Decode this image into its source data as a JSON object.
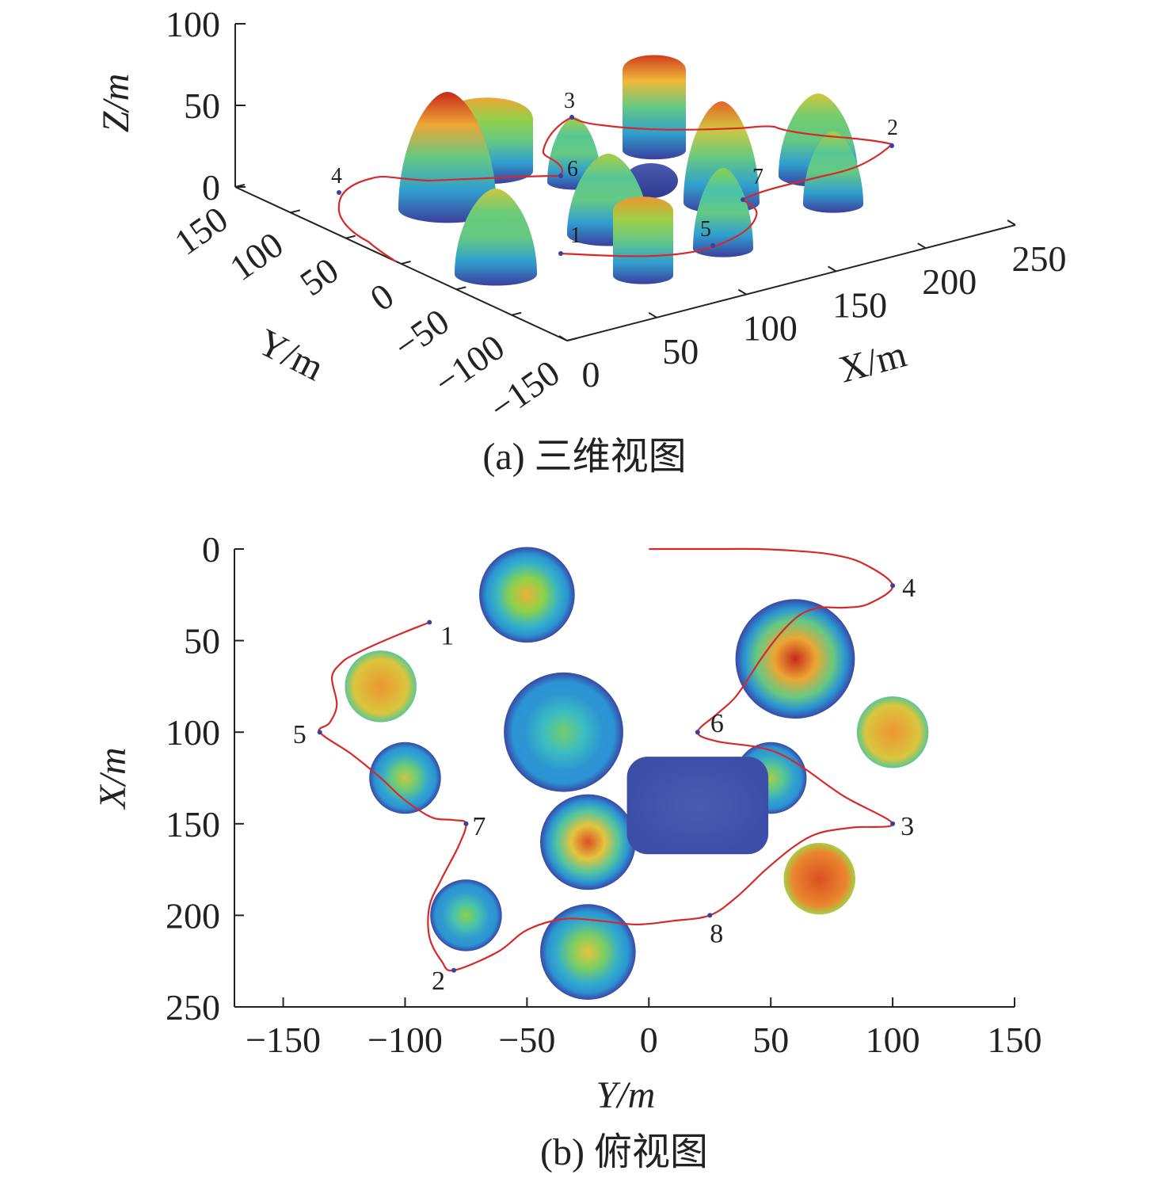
{
  "chart_data": [
    {
      "type": "surface3d",
      "caption": "(a) 三维视图",
      "xlabel": "X/m",
      "ylabel": "Y/m",
      "zlabel": "Z/m",
      "x_ticks": [
        0,
        50,
        100,
        150,
        200,
        250
      ],
      "y_ticks": [
        150,
        100,
        50,
        0,
        -50,
        -100,
        -150
      ],
      "z_ticks": [
        100,
        50,
        0
      ],
      "xlim": [
        0,
        250
      ],
      "ylim": [
        -150,
        150
      ],
      "zlim": [
        0,
        100
      ],
      "colormap": [
        "#3b3f9e",
        "#2a8fd6",
        "#3cc0c0",
        "#8ad24a",
        "#f0c23a",
        "#e86a28",
        "#c62a1a"
      ],
      "path_color": "#d62a2a",
      "waypoint_labels": [
        "1",
        "2",
        "3",
        "4",
        "5",
        "6",
        "7"
      ]
    },
    {
      "type": "heatmap",
      "caption": "(b) 俯视图",
      "xlabel": "Y/m",
      "ylabel": "X/m",
      "x_ticks": [
        -150,
        -100,
        -50,
        0,
        50,
        100,
        150
      ],
      "y_ticks": [
        0,
        50,
        100,
        150,
        200,
        250
      ],
      "xlim": [
        -170,
        150
      ],
      "ylim": [
        0,
        250
      ],
      "colormap": [
        "#3b3f9e",
        "#2a8fd6",
        "#3cc0c0",
        "#8ad24a",
        "#f0c23a",
        "#e86a28",
        "#c62a1a"
      ],
      "obstacles": [
        {
          "shape": "circle",
          "y": -50,
          "x": 25,
          "r": 20,
          "peak": 0.7
        },
        {
          "shape": "circle",
          "y": -110,
          "x": 75,
          "r": 15,
          "peak": 0.75,
          "flat": true
        },
        {
          "shape": "circle",
          "y": -35,
          "x": 100,
          "r": 25,
          "peak": 0.45
        },
        {
          "shape": "circle",
          "y": -100,
          "x": 125,
          "r": 15,
          "peak": 0.6
        },
        {
          "shape": "circle",
          "y": -25,
          "x": 160,
          "r": 20,
          "peak": 0.9
        },
        {
          "shape": "circle",
          "y": -75,
          "x": 200,
          "r": 15,
          "peak": 0.5
        },
        {
          "shape": "circle",
          "y": -25,
          "x": 220,
          "r": 20,
          "peak": 0.65
        },
        {
          "shape": "circle",
          "y": 60,
          "x": 60,
          "r": 25,
          "peak": 1.0
        },
        {
          "shape": "circle",
          "y": 100,
          "x": 100,
          "r": 15,
          "peak": 0.75,
          "flat": true
        },
        {
          "shape": "circle",
          "y": 50,
          "x": 125,
          "r": 15,
          "peak": 0.55
        },
        {
          "shape": "circle",
          "y": 70,
          "x": 180,
          "r": 15,
          "peak": 0.9,
          "flat": true
        },
        {
          "shape": "square",
          "y": 20,
          "x": 140,
          "half": 20,
          "peak": 0.0
        }
      ],
      "path": [
        [
          0,
          0
        ],
        [
          15,
          0
        ],
        [
          30,
          0
        ],
        [
          45,
          0
        ],
        [
          60,
          1
        ],
        [
          75,
          3
        ],
        [
          88,
          8
        ],
        [
          100,
          20
        ],
        [
          90,
          30
        ],
        [
          80,
          32
        ],
        [
          70,
          32
        ],
        [
          62,
          36
        ],
        [
          54,
          46
        ],
        [
          46,
          60
        ],
        [
          36,
          80
        ],
        [
          28,
          90
        ],
        [
          20,
          100
        ],
        [
          28,
          105
        ],
        [
          44,
          108
        ],
        [
          54,
          112
        ],
        [
          64,
          120
        ],
        [
          80,
          135
        ],
        [
          100,
          150
        ],
        [
          84,
          152
        ],
        [
          70,
          155
        ],
        [
          60,
          162
        ],
        [
          48,
          175
        ],
        [
          36,
          190
        ],
        [
          25,
          200
        ],
        [
          10,
          203
        ],
        [
          -5,
          205
        ],
        [
          -20,
          203
        ],
        [
          -35,
          202
        ],
        [
          -50,
          208
        ],
        [
          -62,
          220
        ],
        [
          -80,
          230
        ],
        [
          -85,
          225
        ],
        [
          -90,
          212
        ],
        [
          -90,
          195
        ],
        [
          -85,
          180
        ],
        [
          -78,
          162
        ],
        [
          -75,
          150
        ],
        [
          -80,
          148
        ],
        [
          -88,
          147
        ],
        [
          -95,
          142
        ],
        [
          -102,
          135
        ],
        [
          -110,
          125
        ],
        [
          -122,
          112
        ],
        [
          -135,
          100
        ],
        [
          -131,
          95
        ],
        [
          -128,
          85
        ],
        [
          -130,
          70
        ],
        [
          -126,
          62
        ],
        [
          -120,
          57
        ],
        [
          -105,
          48
        ],
        [
          -90,
          40
        ]
      ],
      "waypoints": [
        {
          "label": "1",
          "y": -90,
          "x": 40
        },
        {
          "label": "2",
          "y": -80,
          "x": 230
        },
        {
          "label": "3",
          "y": 100,
          "x": 150
        },
        {
          "label": "4",
          "y": 100,
          "x": 20
        },
        {
          "label": "5",
          "y": -135,
          "x": 100
        },
        {
          "label": "6",
          "y": 20,
          "x": 100
        },
        {
          "label": "7",
          "y": -75,
          "x": 150
        },
        {
          "label": "8",
          "y": 25,
          "x": 200
        }
      ],
      "path_color": "#d62a2a"
    }
  ]
}
